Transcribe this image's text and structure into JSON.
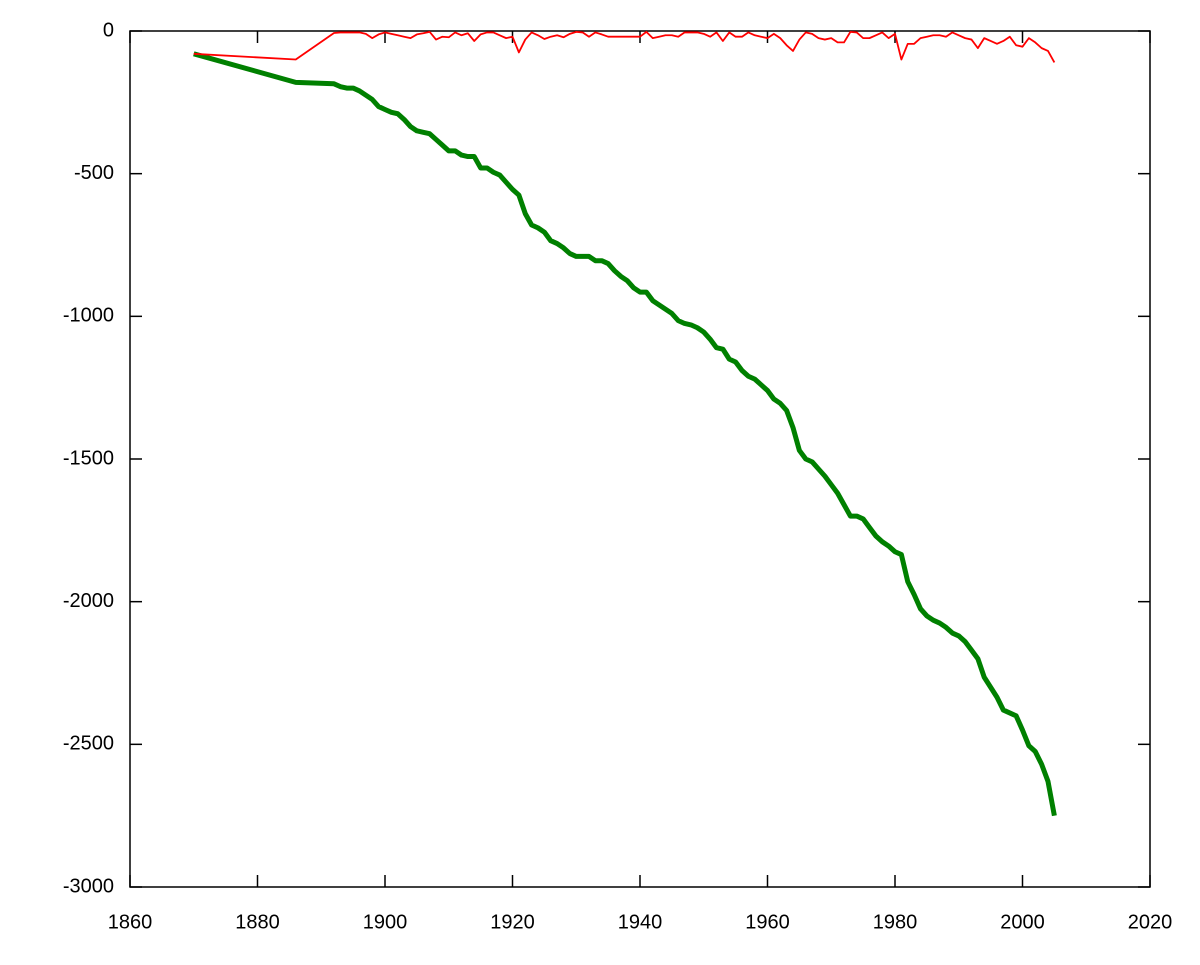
{
  "chart_data": {
    "type": "line",
    "x": [
      1870,
      1886,
      1892,
      1893,
      1894,
      1895,
      1896,
      1897,
      1898,
      1899,
      1900,
      1901,
      1902,
      1903,
      1904,
      1905,
      1906,
      1907,
      1908,
      1909,
      1910,
      1911,
      1912,
      1913,
      1914,
      1915,
      1916,
      1917,
      1918,
      1919,
      1920,
      1921,
      1922,
      1923,
      1924,
      1925,
      1926,
      1927,
      1928,
      1929,
      1930,
      1931,
      1932,
      1933,
      1934,
      1935,
      1936,
      1937,
      1938,
      1939,
      1940,
      1941,
      1942,
      1943,
      1944,
      1945,
      1946,
      1947,
      1948,
      1949,
      1950,
      1951,
      1952,
      1953,
      1954,
      1955,
      1956,
      1957,
      1958,
      1959,
      1960,
      1961,
      1962,
      1963,
      1964,
      1965,
      1966,
      1967,
      1968,
      1969,
      1970,
      1971,
      1972,
      1973,
      1974,
      1975,
      1976,
      1977,
      1978,
      1979,
      1980,
      1981,
      1982,
      1983,
      1984,
      1985,
      1986,
      1987,
      1988,
      1989,
      1990,
      1991,
      1992,
      1993,
      1994,
      1995,
      1996,
      1997,
      1998,
      1999,
      2000,
      2001,
      2002,
      2003,
      2004,
      2005
    ],
    "series": [
      {
        "color": "#008000",
        "line_width": 5,
        "values": [
          -80,
          -180,
          -185,
          -195,
          -200,
          -200,
          -210,
          -225,
          -240,
          -265,
          -275,
          -285,
          -290,
          -310,
          -335,
          -350,
          -355,
          -360,
          -380,
          -400,
          -420,
          -420,
          -435,
          -440,
          -440,
          -480,
          -480,
          -495,
          -505,
          -530,
          -555,
          -575,
          -640,
          -680,
          -690,
          -705,
          -735,
          -745,
          -760,
          -780,
          -790,
          -790,
          -790,
          -805,
          -805,
          -815,
          -840,
          -860,
          -875,
          -900,
          -915,
          -915,
          -945,
          -960,
          -975,
          -990,
          -1015,
          -1025,
          -1030,
          -1040,
          -1055,
          -1080,
          -1110,
          -1115,
          -1150,
          -1160,
          -1190,
          -1210,
          -1220,
          -1240,
          -1260,
          -1290,
          -1305,
          -1330,
          -1390,
          -1470,
          -1500,
          -1510,
          -1535,
          -1560,
          -1590,
          -1620,
          -1660,
          -1700,
          -1700,
          -1710,
          -1740,
          -1770,
          -1790,
          -1805,
          -1825,
          -1835,
          -1930,
          -1975,
          -2025,
          -2050,
          -2065,
          -2075,
          -2090,
          -2110,
          -2120,
          -2140,
          -2170,
          -2200,
          -2265,
          -2300,
          -2335,
          -2380,
          -2390,
          -2400,
          -2450,
          -2505,
          -2525,
          -2570,
          -2630,
          -2750
        ]
      },
      {
        "color": "#ff0000",
        "line_width": 1.8,
        "values": [
          -80,
          -100,
          -7,
          -5,
          -5,
          -5,
          -5,
          -10,
          -25,
          -12,
          -5,
          -10,
          -15,
          -20,
          -25,
          -12,
          -8,
          -3,
          -30,
          -20,
          -22,
          -5,
          -15,
          -8,
          -35,
          -12,
          -5,
          -5,
          -15,
          -25,
          -20,
          -75,
          -30,
          -5,
          -15,
          -28,
          -20,
          -15,
          -22,
          -10,
          -3,
          -5,
          -20,
          -5,
          -12,
          -20,
          -20,
          -20,
          -20,
          -20,
          -20,
          -3,
          -25,
          -20,
          -15,
          -15,
          -20,
          -5,
          -5,
          -5,
          -10,
          -20,
          -5,
          -35,
          -5,
          -20,
          -20,
          -5,
          -15,
          -20,
          -25,
          -10,
          -25,
          -50,
          -70,
          -30,
          -5,
          -10,
          -25,
          -30,
          -25,
          -40,
          -40,
          -3,
          -5,
          -25,
          -25,
          -15,
          -5,
          -25,
          -10,
          -100,
          -45,
          -45,
          -25,
          -20,
          -15,
          -15,
          -20,
          -5,
          -15,
          -25,
          -30,
          -60,
          -25,
          -35,
          -45,
          -35,
          -20,
          -50,
          -55,
          -25,
          -40,
          -60,
          -70,
          -110
        ]
      }
    ],
    "xlim": [
      1860,
      2020
    ],
    "xticks": [
      1860,
      1880,
      1900,
      1920,
      1940,
      1960,
      1980,
      2000,
      2020
    ],
    "ylim": [
      -3000,
      0
    ],
    "yticks": [
      0,
      -500,
      -1000,
      -1500,
      -2000,
      -2500,
      -3000
    ],
    "grid": false
  }
}
